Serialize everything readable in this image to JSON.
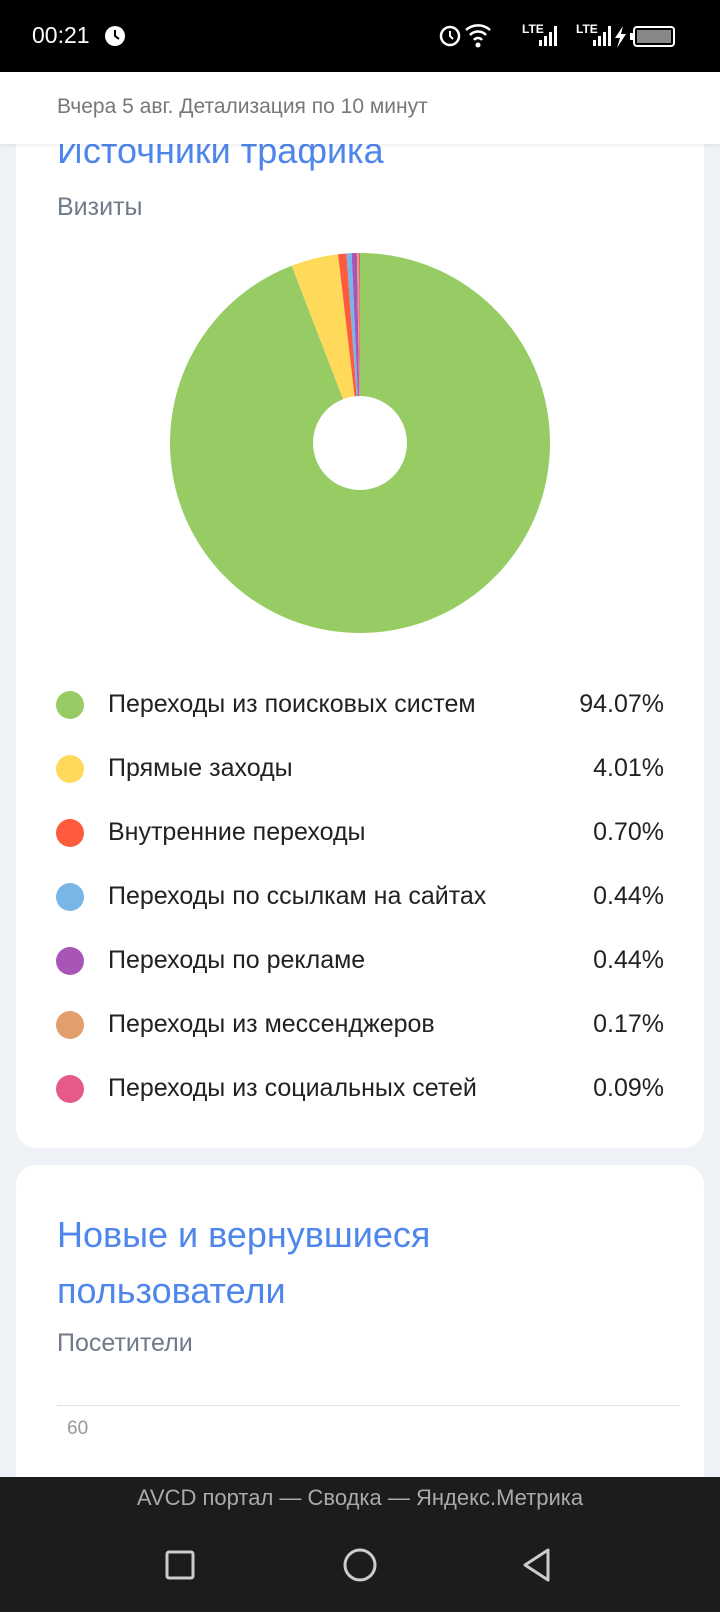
{
  "status_bar": {
    "time": "00:21",
    "network": [
      "LTE",
      "LTE"
    ]
  },
  "header": {
    "title": "Вчера 5 авг. Детализация по 10 минут"
  },
  "chart_data": [
    {
      "type": "pie",
      "title": "Источники трафика",
      "subtitle": "Визиты",
      "categories": [
        "Переходы из поисковых систем",
        "Прямые заходы",
        "Внутренние переходы",
        "Переходы по ссылкам на сайтах",
        "Переходы по рекламе",
        "Переходы из мессенджеров",
        "Переходы из социальных сетей"
      ],
      "values": [
        94.07,
        4.01,
        0.7,
        0.44,
        0.44,
        0.17,
        0.09
      ],
      "value_labels": [
        "94.07%",
        "4.01%",
        "0.70%",
        "0.44%",
        "0.44%",
        "0.17%",
        "0.09%"
      ],
      "colors": [
        "#97cc64",
        "#ffd95a",
        "#fd5a3e",
        "#77b6e7",
        "#a955b8",
        "#e29e6d",
        "#e65a8a"
      ],
      "donut": true
    },
    {
      "type": "line",
      "title": "Новые и вернувшиеся пользователи",
      "subtitle": "Посетители",
      "yticks": [
        60
      ],
      "grid": true
    }
  ],
  "footer": {
    "title": "AVCD портал — Сводка — Яндекс.Метрика"
  }
}
